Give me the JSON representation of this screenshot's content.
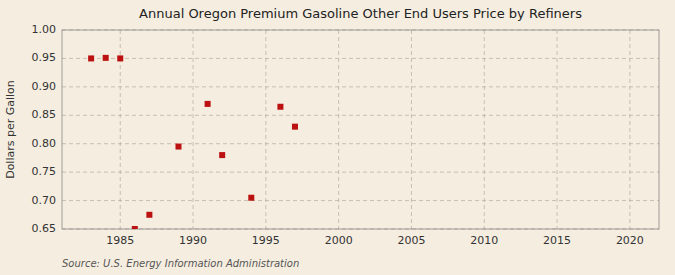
{
  "chart_data": {
    "type": "scatter",
    "title": "Annual Oregon Premium Gasoline Other End Users Price by Refiners",
    "ylabel": "Dollars per Gallon",
    "source": "Source: U.S. Energy Information Administration",
    "x": [
      1983,
      1984,
      1985,
      1986,
      1987,
      1989,
      1991,
      1992,
      1994,
      1996,
      1997
    ],
    "values": [
      0.95,
      0.951,
      0.95,
      0.65,
      0.675,
      0.795,
      0.87,
      0.78,
      0.705,
      0.865,
      0.83
    ],
    "color": "#bb1111",
    "marker": "square",
    "xlim": [
      1981,
      2022
    ],
    "ylim": [
      0.65,
      1.0
    ],
    "xticks": [
      1985,
      1990,
      1995,
      2000,
      2005,
      2010,
      2015,
      2020
    ],
    "yticks": [
      0.65,
      {
        "value": 0.7,
        "label": "0.70"
      },
      0.75,
      {
        "value": 0.8,
        "label": "0.80"
      },
      0.85,
      {
        "value": 0.9,
        "label": "0.90"
      },
      0.95,
      {
        "value": 1,
        "label": "1.00"
      }
    ],
    "grid": true
  }
}
